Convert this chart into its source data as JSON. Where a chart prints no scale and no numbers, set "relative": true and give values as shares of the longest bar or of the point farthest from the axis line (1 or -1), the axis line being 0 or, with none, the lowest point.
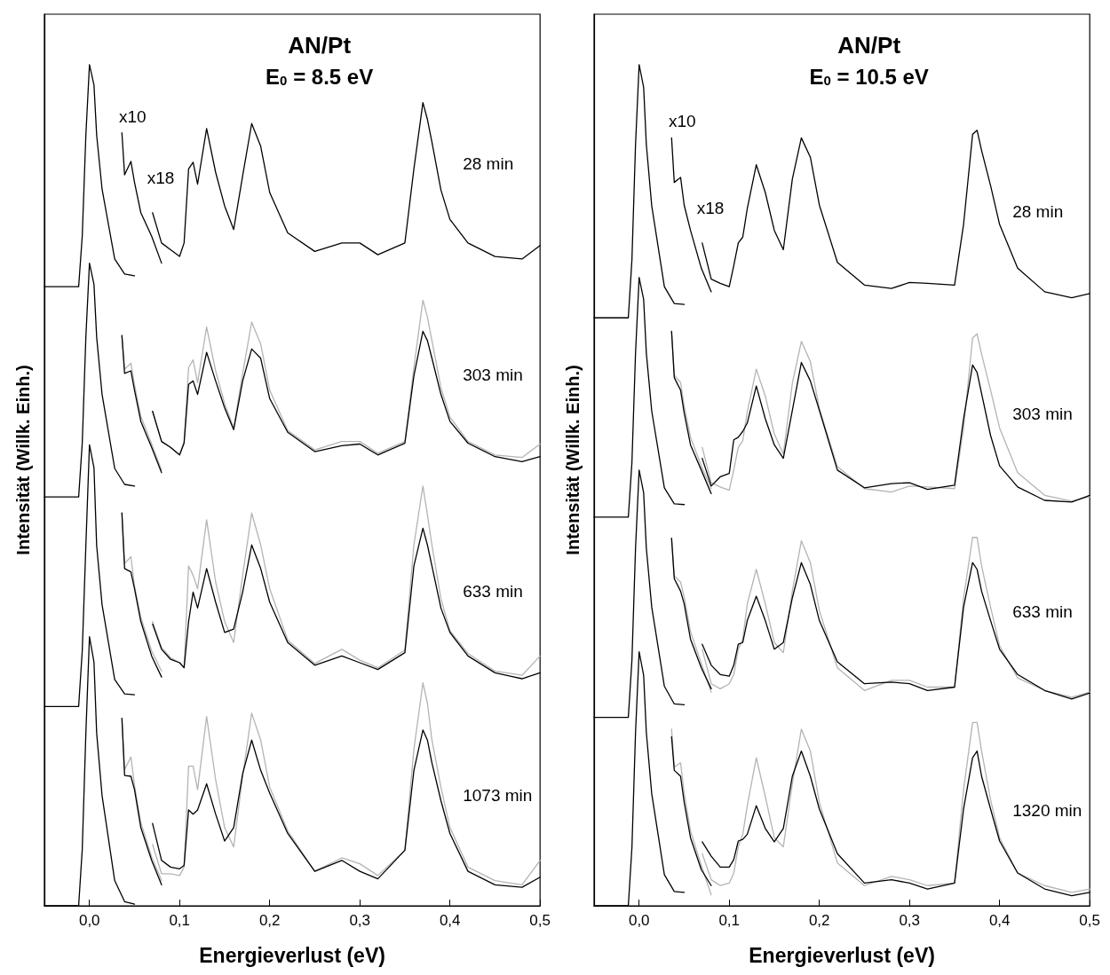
{
  "chart_data": [
    {
      "type": "line",
      "title": "AN/Pt",
      "subtitle": "E$_{0}$ = 8.5 eV",
      "xlabel": "Energieverlust (eV)",
      "ylabel": "Intensität (Willk. Einh.)",
      "relative": true,
      "xlim": [
        -0.05,
        0.5
      ],
      "xticks": [
        {
          "value": 0,
          "label": "0,0"
        },
        {
          "value": 0.1,
          "label": "0,1"
        },
        {
          "value": 0.2,
          "label": "0,2"
        },
        {
          "value": 0.3,
          "label": "0,3"
        },
        {
          "value": 0.4,
          "label": "0,4"
        },
        {
          "value": 0.5,
          "label": "0,5"
        }
      ],
      "x": [
        0.07,
        0.08,
        0.09,
        0.1,
        0.105,
        0.11,
        0.115,
        0.12,
        0.13,
        0.14,
        0.15,
        0.16,
        0.17,
        0.18,
        0.19,
        0.2,
        0.22,
        0.25,
        0.28,
        0.3,
        0.32,
        0.35,
        0.36,
        0.37,
        0.375,
        0.38,
        0.39,
        0.4,
        0.42,
        0.45,
        0.48,
        0.5
      ],
      "series": [
        {
          "color": "#b4b4b4",
          "x": [
            0.036,
            0.039,
            0.046,
            0.05,
            0.057,
            0.069,
            0.08
          ],
          "values": [
            0.678,
            0.638,
            0.645,
            0.619,
            0.582,
            0.549,
            0.518
          ]
        },
        {
          "color": "#b4b4b4",
          "values": [
            0.588,
            0.552,
            0.545,
            0.536,
            0.552,
            0.64,
            0.649,
            0.622,
            0.688,
            0.636,
            0.597,
            0.568,
            0.633,
            0.694,
            0.668,
            0.613,
            0.565,
            0.542,
            0.552,
            0.552,
            0.538,
            0.552,
            0.64,
            0.72,
            0.7,
            0.672,
            0.616,
            0.581,
            0.552,
            0.536,
            0.533,
            0.549
          ]
        },
        {
          "color": "#b4b4b4",
          "x": [
            0.036,
            0.039,
            0.046,
            0.05,
            0.057,
            0.069,
            0.08
          ],
          "values": [
            0.467,
            0.407,
            0.415,
            0.38,
            0.343,
            0.303,
            0.279
          ]
        },
        {
          "color": "#b4b4b4",
          "values": [
            0.338,
            0.307,
            0.295,
            0.289,
            0.283,
            0.404,
            0.393,
            0.377,
            0.459,
            0.385,
            0.338,
            0.313,
            0.393,
            0.467,
            0.429,
            0.377,
            0.316,
            0.288,
            0.305,
            0.292,
            0.283,
            0.304,
            0.429,
            0.499,
            0.465,
            0.429,
            0.365,
            0.327,
            0.3,
            0.279,
            0.274,
            0.297
          ]
        },
        {
          "color": "#b4b4b4",
          "x": [
            0.036,
            0.039,
            0.046,
            0.05,
            0.057,
            0.069,
            0.08
          ],
          "values": [
            0.223,
            0.162,
            0.177,
            0.143,
            0.099,
            0.058,
            0.03
          ]
        },
        {
          "color": "#b4b4b4",
          "values": [
            0.073,
            0.038,
            0.038,
            0.036,
            0.046,
            0.166,
            0.166,
            0.138,
            0.225,
            0.15,
            0.093,
            0.07,
            0.154,
            0.229,
            0.197,
            0.141,
            0.089,
            0.041,
            0.057,
            0.05,
            0.036,
            0.066,
            0.186,
            0.265,
            0.241,
            0.197,
            0.141,
            0.093,
            0.046,
            0.03,
            0.025,
            0.054
          ]
        },
        {
          "color": "#000000",
          "x": [
            -0.05,
            -0.012,
            -0.008,
            -0.004,
            0,
            0.005,
            0.008,
            0.014,
            0.028,
            0.039,
            0.05
          ],
          "values": [
            0.736,
            0.736,
            0.796,
            0.916,
            1,
            0.976,
            0.916,
            0.852,
            0.769,
            0.751,
            0.749
          ]
        },
        {
          "name": "x10",
          "color": "#000000",
          "x": [
            0.036,
            0.039,
            0.046,
            0.05,
            0.057,
            0.069,
            0.08
          ],
          "values": [
            0.919,
            0.869,
            0.885,
            0.86,
            0.824,
            0.796,
            0.764
          ]
        },
        {
          "name": "28 min",
          "color": "#000000",
          "values": [
            0.824,
            0.788,
            0.78,
            0.772,
            0.788,
            0.876,
            0.884,
            0.858,
            0.924,
            0.872,
            0.832,
            0.804,
            0.868,
            0.93,
            0.903,
            0.848,
            0.8,
            0.778,
            0.788,
            0.788,
            0.774,
            0.788,
            0.876,
            0.955,
            0.935,
            0.908,
            0.851,
            0.816,
            0.788,
            0.772,
            0.769,
            0.785
          ]
        },
        {
          "color": "#000000",
          "x": [
            -0.05,
            -0.012,
            -0.008,
            -0.004,
            0,
            0.005,
            0.008,
            0.014,
            0.028,
            0.039,
            0.05
          ],
          "values": [
            0.486,
            0.486,
            0.55,
            0.676,
            0.764,
            0.739,
            0.676,
            0.608,
            0.52,
            0.501,
            0.499
          ]
        },
        {
          "color": "#000000",
          "x": [
            0.036,
            0.039,
            0.046,
            0.05,
            0.057,
            0.069,
            0.08
          ],
          "values": [
            0.678,
            0.633,
            0.636,
            0.613,
            0.576,
            0.545,
            0.515
          ]
        },
        {
          "name": "303 min",
          "color": "#000000",
          "values": [
            0.588,
            0.552,
            0.545,
            0.536,
            0.55,
            0.62,
            0.624,
            0.608,
            0.658,
            0.624,
            0.592,
            0.566,
            0.624,
            0.662,
            0.651,
            0.603,
            0.563,
            0.54,
            0.547,
            0.549,
            0.536,
            0.55,
            0.63,
            0.683,
            0.672,
            0.651,
            0.608,
            0.576,
            0.55,
            0.534,
            0.528,
            0.534
          ]
        },
        {
          "color": "#000000",
          "x": [
            -0.05,
            -0.012,
            -0.008,
            -0.004,
            0,
            0.005,
            0.008,
            0.014,
            0.028,
            0.039,
            0.05
          ],
          "values": [
            0.237,
            0.237,
            0.303,
            0.428,
            0.548,
            0.521,
            0.428,
            0.358,
            0.269,
            0.252,
            0.251
          ]
        },
        {
          "color": "#000000",
          "x": [
            0.036,
            0.039,
            0.046,
            0.05,
            0.057,
            0.069,
            0.08
          ],
          "values": [
            0.467,
            0.401,
            0.397,
            0.377,
            0.338,
            0.297,
            0.272
          ]
        },
        {
          "name": "633 min",
          "color": "#000000",
          "values": [
            0.335,
            0.305,
            0.293,
            0.289,
            0.283,
            0.338,
            0.373,
            0.354,
            0.401,
            0.361,
            0.325,
            0.329,
            0.373,
            0.429,
            0.401,
            0.361,
            0.313,
            0.286,
            0.297,
            0.289,
            0.281,
            0.301,
            0.404,
            0.449,
            0.429,
            0.404,
            0.354,
            0.325,
            0.297,
            0.277,
            0.27,
            0.277
          ]
        },
        {
          "color": "#000000",
          "x": [
            -0.05,
            -0.012,
            -0.008,
            -0.004,
            0,
            0.005,
            0.008,
            0.014,
            0.028,
            0.039,
            0.05
          ],
          "values": [
            0,
            0,
            0.067,
            0.205,
            0.32,
            0.29,
            0.205,
            0.131,
            0.03,
            0.005,
            0.002
          ]
        },
        {
          "color": "#000000",
          "x": [
            0.036,
            0.039,
            0.046,
            0.05,
            0.057,
            0.069,
            0.08
          ],
          "values": [
            0.223,
            0.155,
            0.154,
            0.138,
            0.093,
            0.054,
            0.025
          ]
        },
        {
          "name": "1073 min",
          "color": "#000000",
          "values": [
            0.098,
            0.054,
            0.046,
            0.044,
            0.048,
            0.114,
            0.109,
            0.114,
            0.145,
            0.109,
            0.077,
            0.093,
            0.157,
            0.197,
            0.161,
            0.134,
            0.086,
            0.041,
            0.054,
            0.041,
            0.032,
            0.066,
            0.161,
            0.209,
            0.197,
            0.17,
            0.125,
            0.086,
            0.041,
            0.025,
            0.022,
            0.034
          ]
        }
      ],
      "annotations": [
        "x18"
      ]
    },
    {
      "type": "line",
      "title": "AN/Pt",
      "subtitle": "E$_{0}$ = 10.5 eV",
      "xlabel": "Energieverlust (eV)",
      "ylabel": "Intensität (Willk. Einh.)",
      "relative": true,
      "xlim": [
        -0.05,
        0.5
      ],
      "xticks": [
        {
          "value": 0,
          "label": "0,0"
        },
        {
          "value": 0.1,
          "label": "0,1"
        },
        {
          "value": 0.2,
          "label": "0,2"
        },
        {
          "value": 0.3,
          "label": "0,3"
        },
        {
          "value": 0.4,
          "label": "0,4"
        },
        {
          "value": 0.5,
          "label": "0,5"
        }
      ],
      "x": [
        0.07,
        0.08,
        0.09,
        0.1,
        0.105,
        0.11,
        0.115,
        0.12,
        0.13,
        0.14,
        0.15,
        0.16,
        0.17,
        0.18,
        0.19,
        0.2,
        0.22,
        0.25,
        0.28,
        0.3,
        0.32,
        0.35,
        0.36,
        0.37,
        0.375,
        0.38,
        0.39,
        0.4,
        0.42,
        0.45,
        0.48,
        0.5
      ],
      "series": [
        {
          "color": "#b4b4b4",
          "x": [
            0.036,
            0.039,
            0.046,
            0.05,
            0.057,
            0.069,
            0.08
          ],
          "values": [
            0.683,
            0.631,
            0.622,
            0.594,
            0.557,
            0.523,
            0.496
          ]
        },
        {
          "color": "#b4b4b4",
          "values": [
            0.545,
            0.503,
            0.498,
            0.494,
            0.518,
            0.545,
            0.553,
            0.587,
            0.638,
            0.606,
            0.561,
            0.537,
            0.621,
            0.671,
            0.647,
            0.591,
            0.522,
            0.496,
            0.492,
            0.499,
            0.498,
            0.496,
            0.568,
            0.675,
            0.68,
            0.656,
            0.613,
            0.568,
            0.515,
            0.488,
            0.481,
            0.486
          ]
        },
        {
          "color": "#b4b4b4",
          "x": [
            0.036,
            0.039,
            0.046,
            0.05,
            0.057,
            0.069,
            0.08
          ],
          "values": [
            0.437,
            0.392,
            0.385,
            0.367,
            0.326,
            0.288,
            0.254
          ]
        },
        {
          "color": "#b4b4b4",
          "values": [
            0.305,
            0.264,
            0.258,
            0.264,
            0.275,
            0.305,
            0.317,
            0.359,
            0.4,
            0.359,
            0.313,
            0.301,
            0.374,
            0.434,
            0.408,
            0.351,
            0.283,
            0.256,
            0.268,
            0.268,
            0.26,
            0.26,
            0.366,
            0.438,
            0.438,
            0.404,
            0.355,
            0.309,
            0.271,
            0.256,
            0.248,
            0.254
          ]
        },
        {
          "color": "#b4b4b4",
          "x": [
            0.036,
            0.039,
            0.046,
            0.05,
            0.057,
            0.069,
            0.08
          ],
          "values": [
            0.21,
            0.165,
            0.17,
            0.134,
            0.089,
            0.048,
            0.013
          ]
        },
        {
          "color": "#b4b4b4",
          "values": [
            0.062,
            0.031,
            0.024,
            0.027,
            0.039,
            0.07,
            0.085,
            0.119,
            0.176,
            0.13,
            0.081,
            0.07,
            0.145,
            0.21,
            0.184,
            0.123,
            0.051,
            0.024,
            0.035,
            0.031,
            0.024,
            0.027,
            0.138,
            0.218,
            0.218,
            0.184,
            0.126,
            0.081,
            0.039,
            0.024,
            0.016,
            0.02
          ]
        },
        {
          "color": "#000000",
          "x": [
            -0.05,
            -0.012,
            -0.008,
            -0.004,
            0,
            0.005,
            0.008,
            0.014,
            0.028,
            0.039,
            0.05
          ],
          "values": [
            0.699,
            0.699,
            0.768,
            0.905,
            1,
            0.973,
            0.905,
            0.832,
            0.736,
            0.716,
            0.715
          ]
        },
        {
          "name": "x10",
          "color": "#000000",
          "x": [
            0.036,
            0.039,
            0.046,
            0.05,
            0.057,
            0.069,
            0.08
          ],
          "values": [
            0.913,
            0.86,
            0.866,
            0.833,
            0.803,
            0.758,
            0.73
          ]
        },
        {
          "name": "28 min",
          "color": "#000000",
          "values": [
            0.788,
            0.745,
            0.74,
            0.736,
            0.761,
            0.788,
            0.795,
            0.829,
            0.881,
            0.848,
            0.803,
            0.78,
            0.864,
            0.913,
            0.89,
            0.833,
            0.765,
            0.738,
            0.734,
            0.741,
            0.74,
            0.738,
            0.81,
            0.917,
            0.922,
            0.898,
            0.856,
            0.81,
            0.758,
            0.73,
            0.723,
            0.728
          ]
        },
        {
          "color": "#000000",
          "x": [
            -0.05,
            -0.012,
            -0.008,
            -0.004,
            0,
            0.005,
            0.008,
            0.014,
            0.028,
            0.039,
            0.05
          ],
          "values": [
            0.462,
            0.462,
            0.527,
            0.657,
            0.747,
            0.721,
            0.657,
            0.588,
            0.497,
            0.478,
            0.477
          ]
        },
        {
          "color": "#000000",
          "x": [
            0.036,
            0.039,
            0.046,
            0.05,
            0.057,
            0.069,
            0.08
          ],
          "values": [
            0.683,
            0.628,
            0.613,
            0.586,
            0.548,
            0.518,
            0.49
          ]
        },
        {
          "name": "303 min",
          "color": "#000000",
          "values": [
            0.532,
            0.499,
            0.51,
            0.514,
            0.554,
            0.557,
            0.564,
            0.574,
            0.618,
            0.579,
            0.548,
            0.532,
            0.589,
            0.646,
            0.624,
            0.589,
            0.518,
            0.497,
            0.502,
            0.503,
            0.495,
            0.5,
            0.579,
            0.643,
            0.634,
            0.609,
            0.559,
            0.523,
            0.498,
            0.482,
            0.48,
            0.488
          ]
        },
        {
          "color": "#000000",
          "x": [
            -0.05,
            -0.012,
            -0.008,
            -0.004,
            0,
            0.005,
            0.008,
            0.014,
            0.028,
            0.039,
            0.05
          ],
          "values": [
            0.224,
            0.224,
            0.292,
            0.425,
            0.518,
            0.491,
            0.425,
            0.355,
            0.261,
            0.24,
            0.239
          ]
        },
        {
          "color": "#000000",
          "x": [
            0.036,
            0.039,
            0.046,
            0.05,
            0.057,
            0.069,
            0.08
          ],
          "values": [
            0.437,
            0.389,
            0.374,
            0.359,
            0.317,
            0.283,
            0.258
          ]
        },
        {
          "name": "633 min",
          "color": "#000000",
          "values": [
            0.311,
            0.286,
            0.275,
            0.273,
            0.286,
            0.311,
            0.313,
            0.339,
            0.368,
            0.339,
            0.305,
            0.313,
            0.366,
            0.408,
            0.382,
            0.339,
            0.29,
            0.264,
            0.266,
            0.264,
            0.256,
            0.26,
            0.355,
            0.408,
            0.4,
            0.374,
            0.339,
            0.305,
            0.275,
            0.256,
            0.246,
            0.253
          ]
        },
        {
          "color": "#000000",
          "x": [
            -0.05,
            -0.012,
            -0.008,
            -0.004,
            0,
            0.005,
            0.008,
            0.014,
            0.028,
            0.039,
            0.05
          ],
          "values": [
            0,
            0,
            0.069,
            0.206,
            0.302,
            0.274,
            0.206,
            0.133,
            0.037,
            0.017,
            0.016
          ]
        },
        {
          "color": "#000000",
          "x": [
            0.036,
            0.039,
            0.046,
            0.05,
            0.057,
            0.069,
            0.08
          ],
          "values": [
            0.201,
            0.161,
            0.154,
            0.123,
            0.081,
            0.043,
            0.024
          ]
        },
        {
          "name": "1320 min",
          "color": "#000000",
          "values": [
            0.076,
            0.059,
            0.046,
            0.046,
            0.055,
            0.077,
            0.079,
            0.085,
            0.119,
            0.092,
            0.076,
            0.092,
            0.154,
            0.184,
            0.154,
            0.115,
            0.062,
            0.027,
            0.031,
            0.027,
            0.02,
            0.027,
            0.115,
            0.176,
            0.184,
            0.154,
            0.115,
            0.077,
            0.039,
            0.02,
            0.012,
            0.016
          ]
        }
      ],
      "annotations": [
        "x18"
      ]
    }
  ]
}
